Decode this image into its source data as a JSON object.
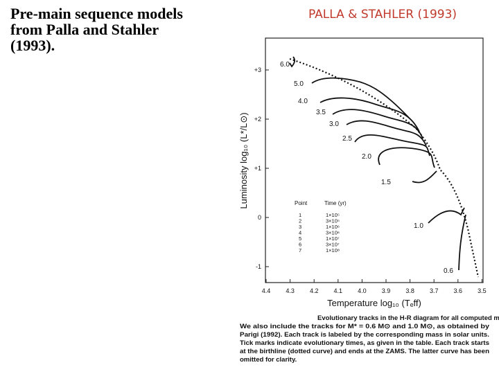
{
  "slide": {
    "title_lines": [
      "Pre-main sequence models",
      "from Palla and Stahler",
      "(1993)."
    ]
  },
  "figure": {
    "handwritten_title": "PALLA & STAHLER (1993)",
    "y_axis_label": "Luminosity log₁₀ (L*/L⊙)",
    "x_axis_label": "Temperature log₁₀ (Tₑff)",
    "x_ticks": [
      "4.4",
      "4.3",
      "4.2",
      "4.1",
      "4.0",
      "3.9",
      "3.8",
      "3.7",
      "3.6",
      "3.5"
    ],
    "y_ticks": [
      "+3",
      "+2",
      "+1",
      "0",
      "-1"
    ],
    "mass_labels": [
      "6.0",
      "5.0",
      "4.0",
      "3.5",
      "3.0",
      "2.5",
      "2.0",
      "1.5",
      "1.0",
      "0.6"
    ],
    "table": {
      "header": [
        "Point",
        "Time (yr)"
      ],
      "rows": [
        [
          "1",
          "1×10⁵"
        ],
        [
          "2",
          "3×10⁵"
        ],
        [
          "3",
          "1×10⁶"
        ],
        [
          "4",
          "3×10⁶"
        ],
        [
          "5",
          "1×10⁷"
        ],
        [
          "6",
          "3×10⁷"
        ],
        [
          "7",
          "1×10⁸"
        ]
      ]
    },
    "caption_lines": [
      "Evolutionary tracks in the H-R diagram for all computed masses.",
      "We also include the tracks for M* = 0.6 M⊙ and 1.0 M⊙, as obtained by",
      "Parigi (1992). Each track is labeled by the corresponding mass in solar units.",
      "Tick marks indicate evolutionary times, as given in the table. Each track starts",
      "at the birthline (dotted curve) and ends at the ZAMS. The latter curve has been",
      "omitted for clarity."
    ]
  }
}
